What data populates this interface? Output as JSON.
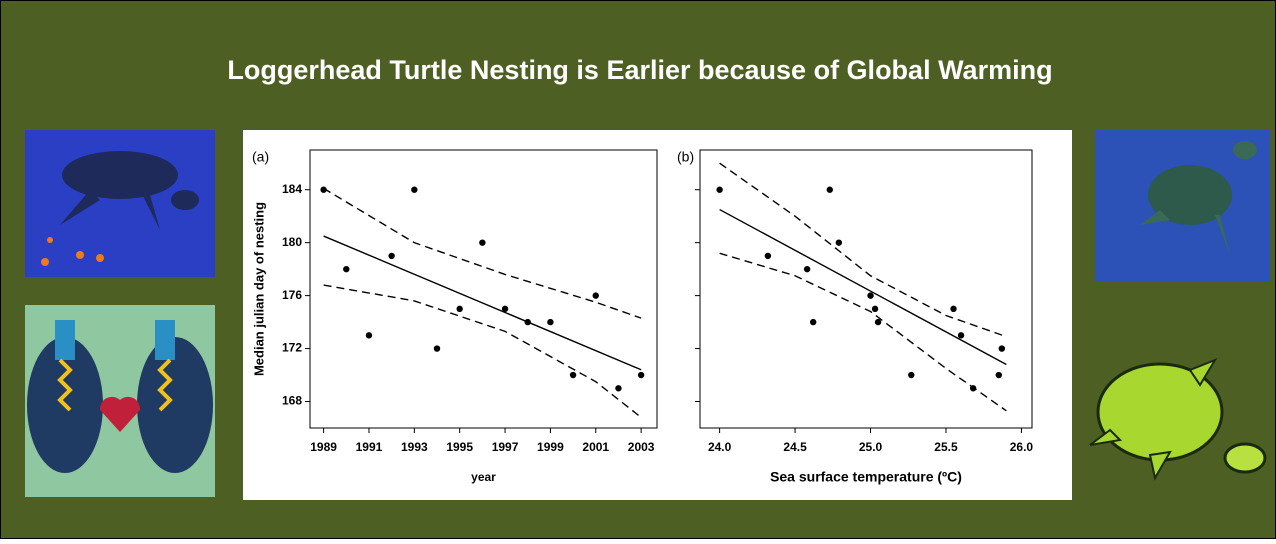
{
  "title": "Loggerhead Turtle Nesting is Earlier because of Global Warming",
  "chart_data": [
    {
      "type": "scatter",
      "panel_label": "(a)",
      "x_label": "year",
      "y_label": "Median julian day of nesting",
      "xlim": [
        1988.4,
        2003.7
      ],
      "xticks": [
        1989,
        1991,
        1993,
        1995,
        1997,
        1999,
        2001,
        2003
      ],
      "ylim": [
        166,
        187
      ],
      "yticks": [
        168,
        172,
        176,
        180,
        184
      ],
      "show_ytick_labels": true,
      "series": [
        {
          "type": "scatter",
          "color": "#000000",
          "x": [
            1989,
            1990,
            1991,
            1992,
            1993,
            1994,
            1995,
            1996,
            1997,
            1998,
            1999,
            2000,
            2001,
            2002,
            2003
          ],
          "values": [
            184,
            178,
            173,
            179,
            184,
            172,
            175,
            180,
            175,
            174,
            174,
            170,
            176,
            169,
            170
          ]
        },
        {
          "type": "line",
          "color": "#000000",
          "dashed": false,
          "x": [
            1989,
            2003
          ],
          "values": [
            180.5,
            170.4
          ]
        },
        {
          "type": "line",
          "color": "#000000",
          "dashed": true,
          "x": [
            1989,
            1993,
            1997,
            2001,
            2003
          ],
          "values": [
            184.1,
            180,
            177.6,
            175.5,
            174.3
          ]
        },
        {
          "type": "line",
          "color": "#000000",
          "dashed": true,
          "x": [
            1989,
            1993,
            1997,
            2001,
            2003
          ],
          "values": [
            176.8,
            175.6,
            173.3,
            169.5,
            166.8
          ]
        }
      ]
    },
    {
      "type": "scatter",
      "panel_label": "(b)",
      "x_label": "Sea surface temperature (ºC)",
      "xlim": [
        23.87,
        26.07
      ],
      "xticks": [
        {
          "value": 24,
          "label": "24.0"
        },
        24.5,
        {
          "value": 25,
          "label": "25.0"
        },
        25.5,
        {
          "value": 26,
          "label": "26.0"
        }
      ],
      "ylim": [
        166,
        187
      ],
      "yticks": [
        168,
        172,
        176,
        180,
        184
      ],
      "show_ytick_labels": false,
      "series": [
        {
          "type": "scatter",
          "color": "#000000",
          "x": [
            24.0,
            24.32,
            24.58,
            24.62,
            24.73,
            24.79,
            25.0,
            25.03,
            25.05,
            25.27,
            25.55,
            25.6,
            25.68,
            25.85,
            25.87
          ],
          "values": [
            184,
            179,
            178,
            174,
            184,
            180,
            176,
            175,
            174,
            170,
            175,
            173,
            169,
            170,
            172
          ]
        },
        {
          "type": "line",
          "color": "#000000",
          "dashed": false,
          "x": [
            24.0,
            25.9
          ],
          "values": [
            182.5,
            170.8
          ]
        },
        {
          "type": "line",
          "color": "#000000",
          "dashed": true,
          "x": [
            24.0,
            24.5,
            25.0,
            25.5,
            25.9
          ],
          "values": [
            186,
            182,
            177.5,
            174.5,
            172.9
          ]
        },
        {
          "type": "line",
          "color": "#000000",
          "dashed": true,
          "x": [
            24.0,
            24.5,
            25.0,
            25.5,
            25.9
          ],
          "values": [
            179.2,
            177.5,
            174.8,
            170.5,
            167.3
          ]
        }
      ]
    }
  ]
}
